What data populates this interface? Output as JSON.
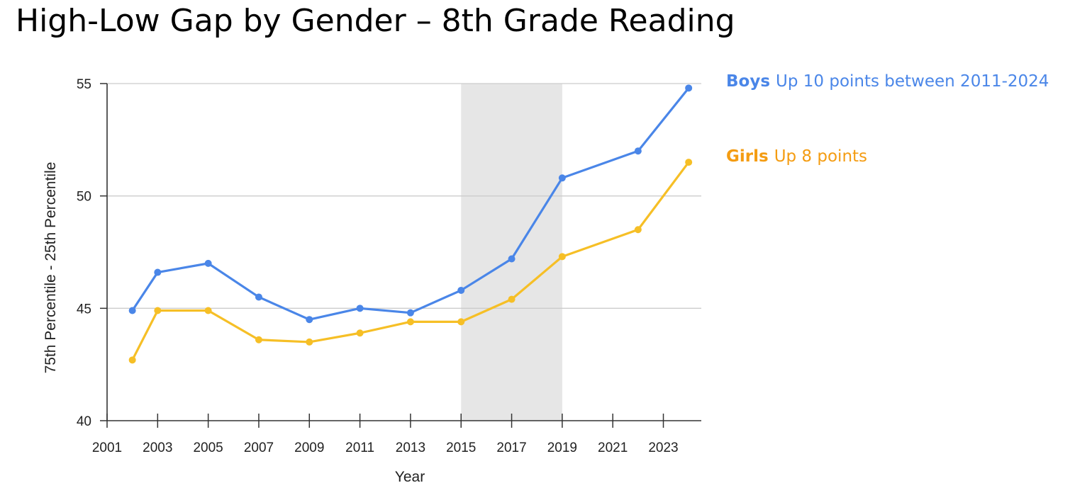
{
  "chart_data": {
    "type": "line",
    "title": "High-Low Gap by Gender – 8th Grade Reading",
    "xlabel": "Year",
    "ylabel": "75th Percentile - 25th Percentile",
    "xlim": [
      2001,
      2024.5
    ],
    "ylim": [
      40,
      55
    ],
    "x_ticks": [
      2001,
      2003,
      2005,
      2007,
      2009,
      2011,
      2013,
      2015,
      2017,
      2019,
      2021,
      2023
    ],
    "y_ticks": [
      40,
      45,
      50,
      55
    ],
    "grid": true,
    "shaded_region": [
      2015,
      2019
    ],
    "series": [
      {
        "name": "Boys",
        "color": "#4a86e8",
        "x": [
          2002,
          2003,
          2005,
          2007,
          2009,
          2011,
          2013,
          2015,
          2017,
          2019,
          2022,
          2024
        ],
        "values": [
          44.9,
          46.6,
          47.0,
          45.5,
          44.5,
          45.0,
          44.8,
          45.8,
          47.2,
          50.8,
          52.0,
          54.8
        ]
      },
      {
        "name": "Girls",
        "color": "#f6bf26",
        "x": [
          2002,
          2003,
          2005,
          2007,
          2009,
          2011,
          2013,
          2015,
          2017,
          2019,
          2022,
          2024
        ],
        "values": [
          42.7,
          44.9,
          44.9,
          43.6,
          43.5,
          43.9,
          44.4,
          44.4,
          45.4,
          47.3,
          48.5,
          51.5
        ]
      }
    ]
  },
  "legend": {
    "boys": {
      "name": "Boys",
      "text": "Up 10 points between 2011-2024",
      "color": "#4a86e8"
    },
    "girls": {
      "name": "Girls",
      "text": "Up 8 points",
      "color": "#f49c12"
    }
  }
}
